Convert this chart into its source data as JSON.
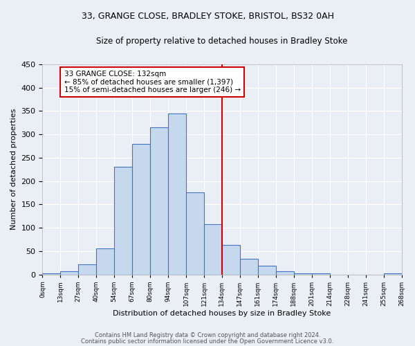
{
  "title": "33, GRANGE CLOSE, BRADLEY STOKE, BRISTOL, BS32 0AH",
  "subtitle": "Size of property relative to detached houses in Bradley Stoke",
  "xlabel": "Distribution of detached houses by size in Bradley Stoke",
  "ylabel": "Number of detached properties",
  "bin_labels": [
    "0sqm",
    "13sqm",
    "27sqm",
    "40sqm",
    "54sqm",
    "67sqm",
    "80sqm",
    "94sqm",
    "107sqm",
    "121sqm",
    "134sqm",
    "147sqm",
    "161sqm",
    "174sqm",
    "188sqm",
    "201sqm",
    "214sqm",
    "228sqm",
    "241sqm",
    "255sqm",
    "268sqm"
  ],
  "bar_heights": [
    3,
    7,
    22,
    55,
    230,
    280,
    315,
    345,
    176,
    108,
    63,
    33,
    18,
    7,
    3,
    2,
    0,
    0,
    0,
    3
  ],
  "bar_color": "#c5d8ee",
  "bar_edge_color": "#4472c4",
  "vline_x": 10,
  "annotation_title": "33 GRANGE CLOSE: 132sqm",
  "annotation_line1": "← 85% of detached houses are smaller (1,397)",
  "annotation_line2": "15% of semi-detached houses are larger (246) →",
  "annotation_box_color": "#ffffff",
  "annotation_border_color": "#cc0000",
  "vline_color": "#cc0000",
  "ylim": [
    0,
    450
  ],
  "background_color": "#eaeff5",
  "grid_color": "#ffffff",
  "footer1": "Contains HM Land Registry data © Crown copyright and database right 2024.",
  "footer2": "Contains public sector information licensed under the Open Government Licence v3.0."
}
